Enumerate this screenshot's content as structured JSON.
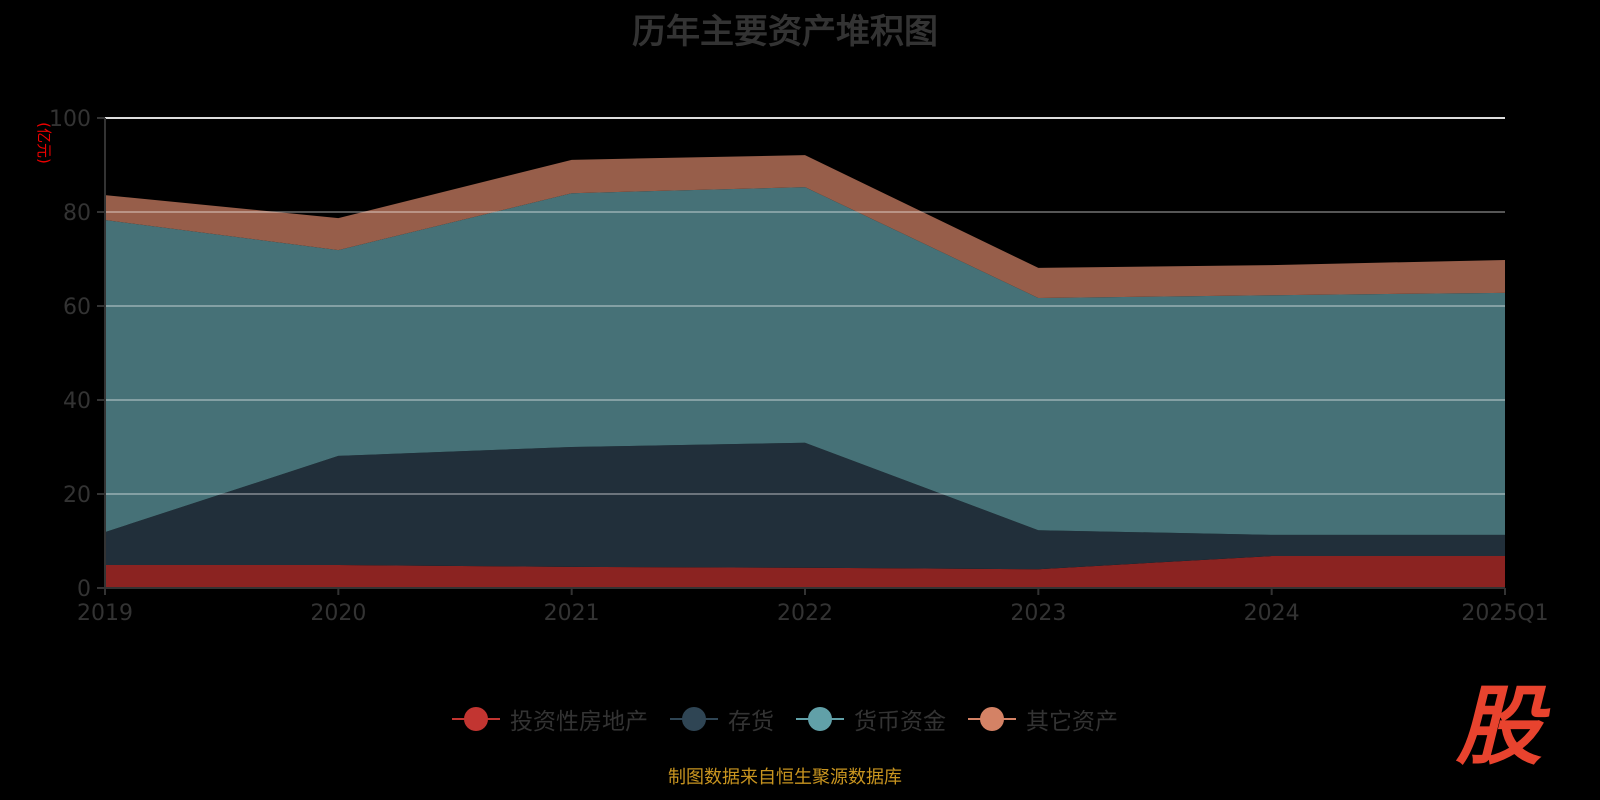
{
  "chart_data": {
    "type": "area",
    "stacked": true,
    "title": "历年主要资产堆积图",
    "ylabel": "(亿元)",
    "xlabel": "",
    "ylim": [
      0,
      100
    ],
    "yticks": [
      0,
      20,
      40,
      60,
      80,
      100
    ],
    "categories": [
      "2019",
      "2020",
      "2021",
      "2022",
      "2023",
      "2024",
      "2025Q1"
    ],
    "series": [
      {
        "name": "投资性房地产",
        "color": "#c23531",
        "fill": "#8b2321",
        "values": [
          4.9,
          4.9,
          4.5,
          4.3,
          4.0,
          6.8,
          6.8
        ]
      },
      {
        "name": "存货",
        "color": "#2f4554",
        "fill": "#212f3a",
        "values": [
          7.0,
          23.2,
          25.5,
          26.6,
          8.3,
          4.5,
          4.5
        ]
      },
      {
        "name": "货币资金",
        "color": "#61a0a8",
        "fill": "#467177",
        "values": [
          66.4,
          43.8,
          54.0,
          54.4,
          49.4,
          51.0,
          51.5
        ]
      },
      {
        "name": "其它资产",
        "color": "#d48265",
        "fill": "#975e4a",
        "values": [
          5.3,
          6.8,
          7.1,
          6.8,
          6.4,
          6.4,
          7.0
        ]
      }
    ],
    "grid": true,
    "legend_position": "bottom"
  },
  "source": "制图数据来自恒生聚源数据库",
  "logo": "股"
}
